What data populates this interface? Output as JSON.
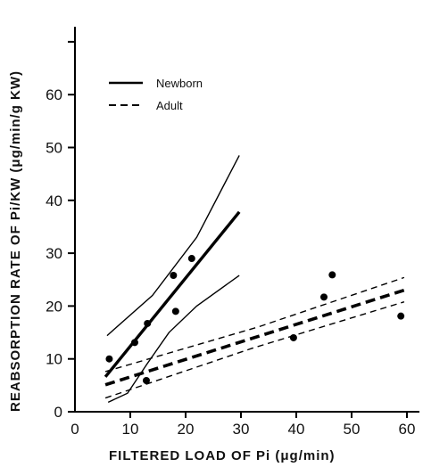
{
  "chart_data": {
    "type": "scatter",
    "xlabel": "FILTERED LOAD OF Pi (μg/min)",
    "ylabel": "REABSORPTION RATE OF Pi/KW (μg/min/g KW)",
    "xlim": [
      0,
      62
    ],
    "ylim": [
      0,
      70
    ],
    "x_ticks": [
      0,
      10,
      20,
      30,
      40,
      50,
      60
    ],
    "y_ticks": [
      0,
      10,
      20,
      30,
      40,
      50,
      60
    ],
    "grid": false,
    "legend_position": "top-left",
    "series": [
      {
        "name": "Newborn",
        "style": "solid",
        "points": [
          {
            "x": 6.2,
            "y": 10
          },
          {
            "x": 10.8,
            "y": 13.1
          },
          {
            "x": 13.1,
            "y": 16.7
          },
          {
            "x": 17.8,
            "y": 25.8
          },
          {
            "x": 18.2,
            "y": 19
          },
          {
            "x": 21.1,
            "y": 29
          }
        ],
        "fit": [
          {
            "x": 5.5,
            "y": 6.6
          },
          {
            "x": 29.7,
            "y": 37.8
          }
        ],
        "ci_upper": [
          {
            "x": 5.8,
            "y": 14.4
          },
          {
            "x": 14,
            "y": 22
          },
          {
            "x": 22,
            "y": 33
          },
          {
            "x": 29.7,
            "y": 48.5
          }
        ],
        "ci_lower": [
          {
            "x": 6,
            "y": 1.8
          },
          {
            "x": 9.5,
            "y": 3.5
          },
          {
            "x": 13,
            "y": 9
          },
          {
            "x": 17,
            "y": 15
          },
          {
            "x": 22,
            "y": 20
          },
          {
            "x": 29.7,
            "y": 25.8
          }
        ]
      },
      {
        "name": "Adult",
        "style": "dashed",
        "points": [
          {
            "x": 12.9,
            "y": 5.9
          },
          {
            "x": 39.5,
            "y": 14
          },
          {
            "x": 45,
            "y": 21.7
          },
          {
            "x": 46.5,
            "y": 25.9
          },
          {
            "x": 58.9,
            "y": 18.1
          }
        ],
        "fit": [
          {
            "x": 5.5,
            "y": 5.1
          },
          {
            "x": 59.5,
            "y": 23
          }
        ],
        "ci_upper": [
          {
            "x": 5.5,
            "y": 7.6
          },
          {
            "x": 33,
            "y": 16
          },
          {
            "x": 59.5,
            "y": 25.4
          }
        ],
        "ci_lower": [
          {
            "x": 5.5,
            "y": 2.6
          },
          {
            "x": 32,
            "y": 12
          },
          {
            "x": 59.5,
            "y": 20.8
          }
        ]
      }
    ]
  }
}
